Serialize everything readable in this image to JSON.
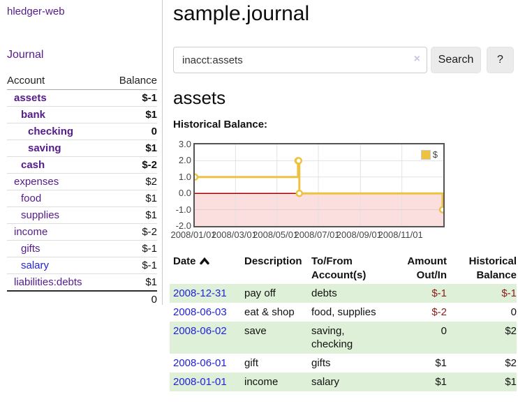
{
  "colors": {
    "link_purple": "#551a8b",
    "link_blue": "#2222dd",
    "negative_red": "#801111",
    "negative_dim_red": "#b97c7c",
    "row_stripe_green": "#dff0d8",
    "series_yellow": "#edc240",
    "chart_border": "#545454",
    "zero_line_red": "#a80000",
    "negative_region_pink": "#fbdede",
    "button_gray": "#ebebeb"
  },
  "sidebar": {
    "brand": "hledger-web",
    "journal_link": "Journal",
    "accounts_table": {
      "headers": {
        "account": "Account",
        "balance": "Balance"
      },
      "rows": [
        {
          "name": "assets",
          "balance": "$-1",
          "depth": 0,
          "bold": true,
          "negative": true,
          "blue": false
        },
        {
          "name": "bank",
          "balance": "$1",
          "depth": 1,
          "bold": true,
          "negative": false,
          "blue": false
        },
        {
          "name": "checking",
          "balance": "0",
          "depth": 2,
          "bold": true,
          "negative": false,
          "blue": false
        },
        {
          "name": "saving",
          "balance": "$1",
          "depth": 2,
          "bold": true,
          "negative": false,
          "blue": false
        },
        {
          "name": "cash",
          "balance": "$-2",
          "depth": 1,
          "bold": true,
          "negative": true,
          "blue": false
        },
        {
          "name": "expenses",
          "balance": "$2",
          "depth": 0,
          "bold": false,
          "negative": false,
          "blue": false
        },
        {
          "name": "food",
          "balance": "$1",
          "depth": 1,
          "bold": false,
          "negative": false,
          "blue": false
        },
        {
          "name": "supplies",
          "balance": "$1",
          "depth": 1,
          "bold": false,
          "negative": false,
          "blue": false
        },
        {
          "name": "income",
          "balance": "$-2",
          "depth": 0,
          "bold": false,
          "negative": true,
          "blue": false
        },
        {
          "name": "gifts",
          "balance": "$-1",
          "depth": 1,
          "bold": false,
          "negative": true,
          "blue": false
        },
        {
          "name": "salary",
          "balance": "$-1",
          "depth": 1,
          "bold": false,
          "negative": true,
          "blue": true
        },
        {
          "name": "liabilities:debts",
          "balance": "$1",
          "depth": 0,
          "bold": false,
          "negative": false,
          "blue": false
        }
      ],
      "total": "0"
    }
  },
  "main": {
    "title": "sample.journal",
    "search": {
      "value": "inacct:assets",
      "clear_icon": "×",
      "search_button": "Search",
      "help_button": "?"
    },
    "account_heading": "assets",
    "chart_label": "Historical Balance:",
    "register_table": {
      "headers": {
        "date": "Date",
        "description": "Description",
        "accounts": "To/From Account(s)",
        "amount": "Amount Out/In",
        "balance": "Historical Balance"
      },
      "rows": [
        {
          "date": "2008-12-31",
          "description": "pay off",
          "accounts": "debts",
          "amount": "$-1",
          "balance": "$-1",
          "shaded": true
        },
        {
          "date": "2008-06-03",
          "description": "eat & shop",
          "accounts": "food, supplies",
          "amount": "$-2",
          "balance": "0",
          "shaded": false
        },
        {
          "date": "2008-06-02",
          "description": "save",
          "accounts": "saving, checking",
          "amount": "0",
          "balance": "$2",
          "shaded": true
        },
        {
          "date": "2008-06-01",
          "description": "gift",
          "accounts": "gifts",
          "amount": "$1",
          "balance": "$2",
          "shaded": false
        },
        {
          "date": "2008-01-01",
          "description": "income",
          "accounts": "salary",
          "amount": "$1",
          "balance": "$1",
          "shaded": true
        }
      ]
    }
  },
  "chart_data": {
    "type": "line",
    "title": "Historical Balance:",
    "steps": true,
    "series": [
      {
        "name": "$",
        "color": "#edc240",
        "points": [
          [
            "2008-01-01",
            1
          ],
          [
            "2008-06-01",
            2
          ],
          [
            "2008-06-02",
            2
          ],
          [
            "2008-06-03",
            0
          ],
          [
            "2008-12-31",
            -1
          ]
        ]
      }
    ],
    "x_range": [
      "2008-01-01",
      "2009-01-01"
    ],
    "ylim": [
      -2,
      3
    ],
    "yticks": [
      3.0,
      2.0,
      1.0,
      0.0,
      -1.0,
      -2.0
    ],
    "ytick_labels": [
      "3.0",
      "2.0",
      "1.0",
      "0.0",
      "-1.0",
      "-2.0"
    ],
    "xticks": [
      "2008-01-01",
      "2008-03-01",
      "2008-05-01",
      "2008-07-01",
      "2008-09-01",
      "2008-11-01"
    ],
    "xtick_labels": [
      "2008/01/01",
      "2008/03/01",
      "2008/05/01",
      "2008/07/01",
      "2008/09/01",
      "2008/11/01"
    ],
    "grid": true,
    "legend_position": "top-right",
    "zero_line": true,
    "negative_region_shaded": true
  }
}
